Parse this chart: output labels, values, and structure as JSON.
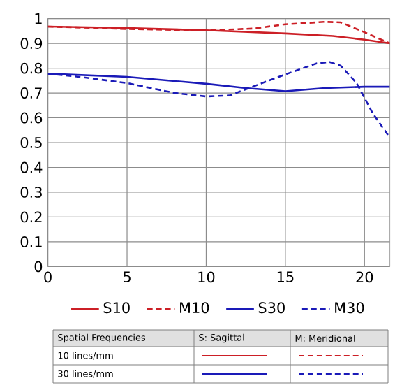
{
  "chart_data": {
    "type": "line",
    "xlim": [
      0,
      21.6
    ],
    "ylim": [
      0,
      1
    ],
    "xticks": [
      0,
      5,
      10,
      15,
      20
    ],
    "yticks": [
      0,
      0.1,
      0.2,
      0.3,
      0.4,
      0.5,
      0.6,
      0.7,
      0.8,
      0.9,
      1
    ],
    "grid": true,
    "legend": "bottom",
    "series": [
      {
        "name": "S10",
        "color": "#cc1f26",
        "line_style": "solid",
        "x": [
          0,
          5,
          10,
          15,
          18,
          20,
          21.6
        ],
        "values": [
          0.968,
          0.962,
          0.953,
          0.94,
          0.93,
          0.915,
          0.9
        ]
      },
      {
        "name": "M10",
        "color": "#cc1f26",
        "line_style": "dashed",
        "x": [
          0,
          5,
          10,
          13,
          15,
          17.5,
          18.5,
          20,
          21.6
        ],
        "values": [
          0.968,
          0.958,
          0.952,
          0.96,
          0.977,
          0.987,
          0.985,
          0.945,
          0.9
        ]
      },
      {
        "name": "S30",
        "color": "#1a1ab8",
        "line_style": "solid",
        "x": [
          0,
          5,
          10,
          12.5,
          15,
          17.5,
          20,
          21.6
        ],
        "values": [
          0.778,
          0.765,
          0.737,
          0.72,
          0.707,
          0.72,
          0.725,
          0.725
        ]
      },
      {
        "name": "M30",
        "color": "#1a1ab8",
        "line_style": "dashed",
        "x": [
          0,
          2,
          5,
          8,
          10,
          11.5,
          12.5,
          15,
          17,
          17.8,
          18.5,
          19.5,
          20.5,
          21.6
        ],
        "values": [
          0.778,
          0.765,
          0.74,
          0.7,
          0.686,
          0.69,
          0.715,
          0.775,
          0.82,
          0.825,
          0.81,
          0.74,
          0.62,
          0.52
        ]
      }
    ],
    "annotations": [
      "Spatial Frequencies",
      "S: Sagittal",
      "M: Meridional",
      "10 lines/mm",
      "30 lines/mm"
    ]
  }
}
